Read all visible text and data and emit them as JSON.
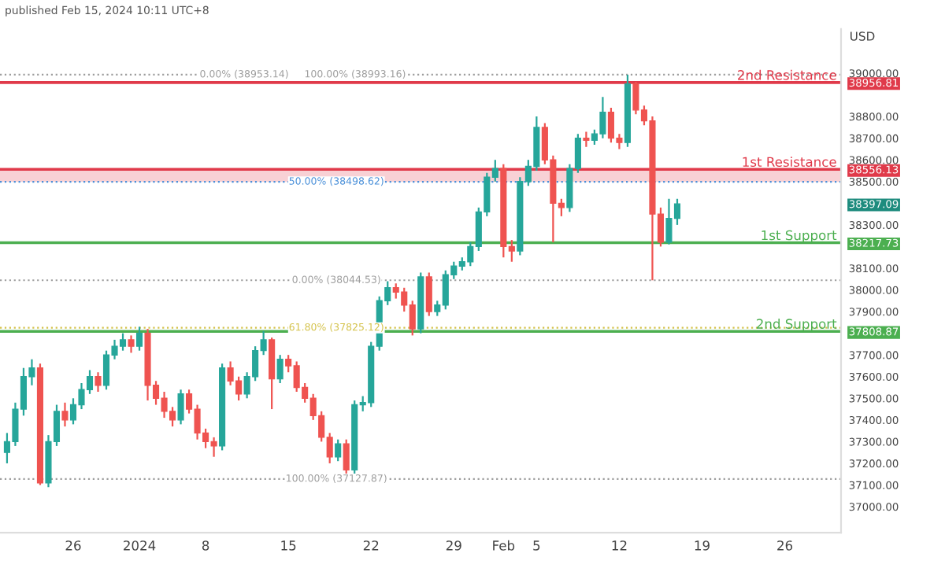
{
  "chart_data": {
    "type": "candlestick",
    "categories": [
      null,
      null,
      null,
      null,
      null,
      null,
      null,
      null,
      "26",
      null,
      null,
      null,
      null,
      null,
      null,
      null,
      "2024",
      null,
      null,
      null,
      null,
      null,
      null,
      null,
      "8",
      null,
      null,
      null,
      null,
      null,
      null,
      null,
      null,
      null,
      "15",
      null,
      null,
      null,
      null,
      null,
      null,
      null,
      null,
      null,
      "22",
      null,
      null,
      null,
      null,
      null,
      null,
      null,
      null,
      null,
      "29",
      null,
      null,
      null,
      null,
      null,
      "Feb",
      null,
      null,
      null,
      "5",
      null,
      null,
      null,
      null,
      null,
      null,
      null,
      null,
      null,
      "12",
      null,
      null,
      null,
      null,
      null,
      null,
      null,
      null,
      null,
      "19",
      null,
      null,
      null,
      null,
      null,
      null,
      null,
      null,
      null,
      "26",
      null,
      null,
      null,
      null,
      null,
      null
    ],
    "ohlc": [
      [
        37250,
        37340,
        37200,
        37300
      ],
      [
        37300,
        37480,
        37280,
        37450
      ],
      [
        37450,
        37640,
        37420,
        37600
      ],
      [
        37600,
        37680,
        37560,
        37640
      ],
      [
        37640,
        37660,
        37100,
        37110
      ],
      [
        37110,
        37330,
        37090,
        37300
      ],
      [
        37300,
        37470,
        37280,
        37440
      ],
      [
        37440,
        37480,
        37370,
        37400
      ],
      [
        37400,
        37500,
        37380,
        37470
      ],
      [
        37470,
        37570,
        37450,
        37540
      ],
      [
        37540,
        37630,
        37520,
        37600
      ],
      [
        37600,
        37620,
        37530,
        37560
      ],
      [
        37560,
        37720,
        37540,
        37700
      ],
      [
        37700,
        37770,
        37680,
        37740
      ],
      [
        37740,
        37800,
        37720,
        37770
      ],
      [
        37770,
        37790,
        37710,
        37740
      ],
      [
        37740,
        37830,
        37720,
        37800
      ],
      [
        37800,
        37820,
        37490,
        37560
      ],
      [
        37560,
        37580,
        37470,
        37500
      ],
      [
        37500,
        37530,
        37410,
        37440
      ],
      [
        37440,
        37460,
        37370,
        37400
      ],
      [
        37400,
        37540,
        37380,
        37520
      ],
      [
        37520,
        37540,
        37430,
        37450
      ],
      [
        37450,
        37470,
        37310,
        37340
      ],
      [
        37340,
        37360,
        37270,
        37300
      ],
      [
        37300,
        37320,
        37230,
        37280
      ],
      [
        37280,
        37660,
        37260,
        37640
      ],
      [
        37640,
        37670,
        37560,
        37580
      ],
      [
        37580,
        37600,
        37490,
        37520
      ],
      [
        37520,
        37620,
        37500,
        37600
      ],
      [
        37600,
        37740,
        37580,
        37720
      ],
      [
        37720,
        37810,
        37700,
        37770
      ],
      [
        37770,
        37780,
        37450,
        37590
      ],
      [
        37590,
        37700,
        37570,
        37680
      ],
      [
        37680,
        37700,
        37620,
        37650
      ],
      [
        37650,
        37670,
        37530,
        37550
      ],
      [
        37550,
        37570,
        37480,
        37500
      ],
      [
        37500,
        37520,
        37400,
        37420
      ],
      [
        37420,
        37440,
        37300,
        37320
      ],
      [
        37320,
        37340,
        37200,
        37230
      ],
      [
        37230,
        37310,
        37210,
        37290
      ],
      [
        37290,
        37310,
        37127.87,
        37170
      ],
      [
        37170,
        37490,
        37150,
        37470
      ],
      [
        37470,
        37510,
        37440,
        37480
      ],
      [
        37480,
        37760,
        37460,
        37740
      ],
      [
        37740,
        37970,
        37720,
        37950
      ],
      [
        37950,
        38040,
        37930,
        38010
      ],
      [
        38010,
        38030,
        37960,
        37990
      ],
      [
        37990,
        38010,
        37900,
        37930
      ],
      [
        37930,
        37950,
        37790,
        37820
      ],
      [
        37820,
        38080,
        37800,
        38060
      ],
      [
        38060,
        38080,
        37880,
        37900
      ],
      [
        37900,
        37950,
        37880,
        37930
      ],
      [
        37930,
        38090,
        37910,
        38070
      ],
      [
        38070,
        38130,
        38050,
        38110
      ],
      [
        38110,
        38150,
        38090,
        38130
      ],
      [
        38130,
        38220,
        38110,
        38200
      ],
      [
        38200,
        38380,
        38180,
        38360
      ],
      [
        38360,
        38540,
        38340,
        38520
      ],
      [
        38520,
        38600,
        38500,
        38560
      ],
      [
        38560,
        38580,
        38150,
        38200
      ],
      [
        38200,
        38230,
        38130,
        38180
      ],
      [
        38180,
        38520,
        38160,
        38500
      ],
      [
        38500,
        38600,
        38480,
        38570
      ],
      [
        38570,
        38800,
        38550,
        38750
      ],
      [
        38750,
        38770,
        38580,
        38600
      ],
      [
        38600,
        38620,
        38220,
        38400
      ],
      [
        38400,
        38420,
        38340,
        38380
      ],
      [
        38380,
        38580,
        38360,
        38560
      ],
      [
        38560,
        38720,
        38540,
        38700
      ],
      [
        38700,
        38730,
        38660,
        38690
      ],
      [
        38690,
        38740,
        38670,
        38720
      ],
      [
        38720,
        38890,
        38700,
        38820
      ],
      [
        38820,
        38840,
        38680,
        38700
      ],
      [
        38700,
        38720,
        38650,
        38680
      ],
      [
        38680,
        38993.16,
        38660,
        38950
      ],
      [
        38950,
        38960,
        38810,
        38830
      ],
      [
        38830,
        38850,
        38760,
        38780
      ],
      [
        38780,
        38800,
        38044.53,
        38350
      ],
      [
        38350,
        38380,
        38200,
        38220
      ],
      [
        38220,
        38420,
        38210,
        38330
      ],
      [
        38330,
        38420,
        38300,
        38397.09
      ],
      null,
      null,
      null,
      null,
      null,
      null,
      null,
      null,
      null,
      null,
      null,
      null,
      null,
      null,
      null,
      null,
      null,
      null,
      null
    ],
    "ylim": [
      36880,
      39204
    ],
    "yticks": [
      {
        "value": 37000,
        "label": "37000.00"
      },
      {
        "value": 37100,
        "label": "37100.00"
      },
      {
        "value": 37200,
        "label": "37200.00"
      },
      {
        "value": 37300,
        "label": "37300.00"
      },
      {
        "value": 37400,
        "label": "37400.00"
      },
      {
        "value": 37500,
        "label": "37500.00"
      },
      {
        "value": 37600,
        "label": "37600.00"
      },
      {
        "value": 37700,
        "label": "37700.00"
      },
      {
        "value": 37808.87,
        "label": "37808.87"
      },
      {
        "value": 37900,
        "label": "37900.00"
      },
      {
        "value": 38000,
        "label": "38000.00"
      },
      {
        "value": 38100,
        "label": "38100.00"
      },
      {
        "value": 38217.73,
        "label": "38217.73"
      },
      {
        "value": 38300,
        "label": "38300.00"
      },
      {
        "value": 38397.09,
        "label": "38397.09"
      },
      {
        "value": 38500,
        "label": "38500.00"
      },
      {
        "value": 38556.13,
        "label": "38556.13"
      },
      {
        "value": 38600,
        "label": "38600.00"
      },
      {
        "value": 38700,
        "label": "38700.00"
      },
      {
        "value": 38800,
        "label": "38800.00"
      },
      {
        "value": 38956.81,
        "label": "38956.81"
      },
      {
        "value": 39000,
        "label": "39000.00"
      }
    ],
    "ylabel": "USD",
    "grid": false,
    "ref_lines": [
      {
        "axis": "y",
        "value": 38956.81,
        "label": "2nd Resistance",
        "color": "#e03a4a",
        "line_style": "solid"
      },
      {
        "axis": "y",
        "value": 38556.13,
        "label": "1st Resistance",
        "color": "#e03a4a",
        "line_style": "solid"
      },
      {
        "axis": "y",
        "value": 38217.73,
        "label": "1st Support",
        "color": "#4caf50",
        "line_style": "solid"
      },
      {
        "axis": "y",
        "value": 37808.87,
        "label": "2nd Support",
        "color": "#4caf50",
        "line_style": "solid"
      },
      {
        "axis": "y",
        "value": 38993.16,
        "label": "0.00% (38953.14)     100.00% (38993.16)",
        "color": "#9e9e9e",
        "line_style": "dotted"
      },
      {
        "axis": "y",
        "value": 38498.62,
        "label": "50.00% (38498.62)",
        "color": "#4a90d9",
        "line_style": "dotted"
      },
      {
        "axis": "y",
        "value": 38044.53,
        "label": "0.00% (38044.53)",
        "color": "#9e9e9e",
        "line_style": "dotted"
      },
      {
        "axis": "y",
        "value": 37825.12,
        "label": "61.80% (37825.12)",
        "color": "#d4c24a",
        "line_style": "dotted"
      },
      {
        "axis": "y",
        "value": 37127.87,
        "label": "100.00% (37127.87)",
        "color": "#9e9e9e",
        "line_style": "dotted"
      }
    ],
    "bands": [
      {
        "axis": "y",
        "from": 38498.62,
        "to": 38556.13,
        "color": "#f6c6cb"
      }
    ],
    "annotations": [
      "published Feb 15, 2024 10:11 UTC+8"
    ]
  }
}
